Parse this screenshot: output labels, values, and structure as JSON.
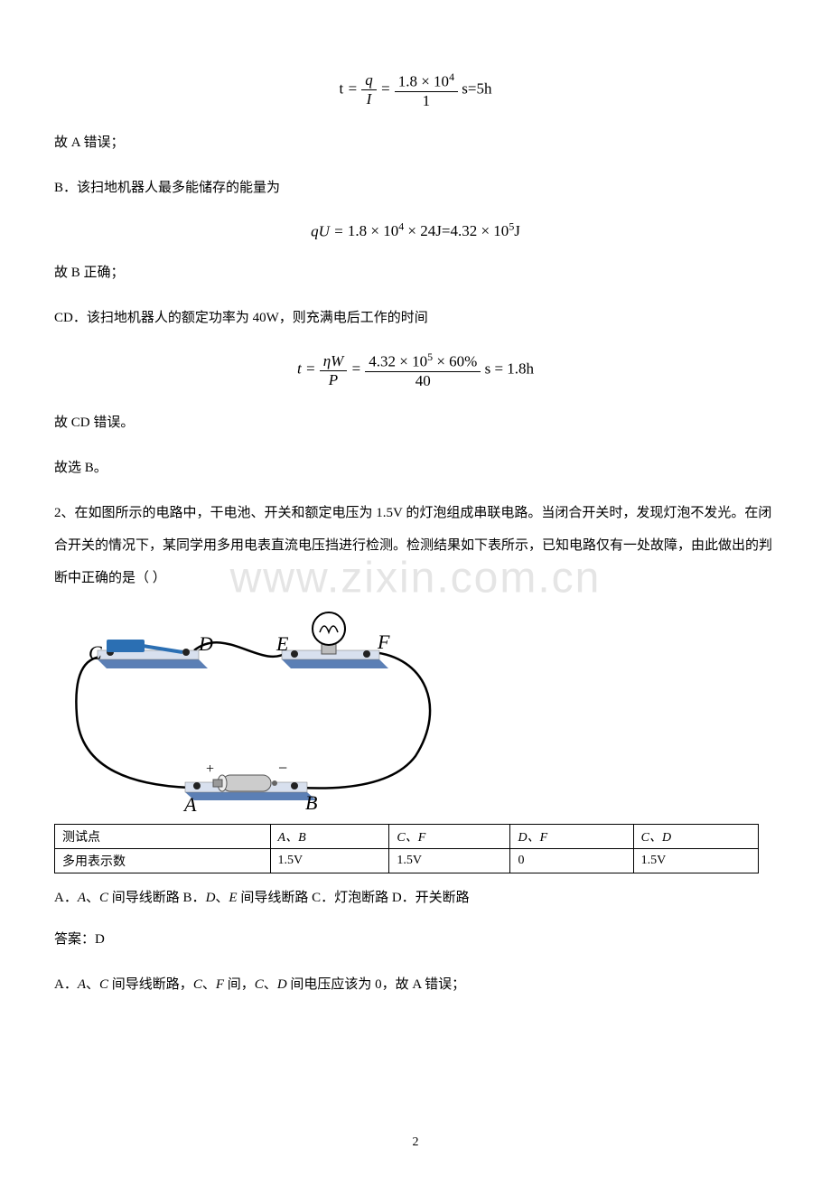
{
  "formula1_html": "<span class='upright'>t</span> = <span class='frac'><span class='num'>q</span><span class='den'>I</span></span> = <span class='frac'><span class='num upright'>1.8 × 10<span class=\"sup\">4</span></span><span class='den upright'>1</span></span> <span class='upright'>s=5h</span>",
  "para1": "故 A 错误；",
  "para2": "B．该扫地机器人最多能储存的能量为",
  "formula2_html": "<span>qU</span> = <span class='upright'>1.8 × 10<span class=\"sup\">4</span> × 24J=4.32 × 10<span class=\"sup\">5</span>J</span>",
  "para3": "故 B 正确；",
  "para4": "CD．该扫地机器人的额定功率为 40W，则充满电后工作的时间",
  "formula3_html": "<span>t</span> = <span class='frac'><span class='num'>ηW</span><span class='den'>P</span></span> = <span class='frac'><span class='num upright'>4.32 × 10<span class=\"sup\">5</span> × 60%</span><span class='den upright'>40</span></span> <span class='upright'>s = 1.8h</span>",
  "para5": "故 CD 错误。",
  "para6": "故选 B。",
  "question2": "2、在如图所示的电路中，干电池、开关和额定电压为 1.5V 的灯泡组成串联电路。当闭合开关时，发现灯泡不发光。在闭合开关的情况下，某同学用多用电表直流电压挡进行检测。检测结果如下表所示，已知电路仅有一处故障，由此做出的判断中正确的是（ ）",
  "watermark_text": "www.zixin.com.cn",
  "circuit_labels": {
    "C": "C",
    "D": "D",
    "E": "E",
    "F": "F",
    "A": "A",
    "B": "B",
    "plus": "+",
    "minus": "−"
  },
  "table": {
    "header": [
      "测试点",
      "A、B",
      "C、F",
      "D、F",
      "C、D"
    ],
    "row": [
      "多用表示数",
      "1.5V",
      "1.5V",
      "0",
      "1.5V"
    ]
  },
  "options_html": "A．<span class='italic-en'>A</span>、<span class='italic-en'>C</span> 间导线断路 B．<span class='italic-en'>D</span>、<span class='italic-en'>E</span> 间导线断路 C．灯泡断路 D．开关断路",
  "answer": "答案：D",
  "expA_html": "A．<span class='italic-en'>A</span>、<span class='italic-en'>C</span> 间导线断路，<span class='italic-en'>C</span>、<span class='italic-en'>F</span> 间，<span class='italic-en'>C</span>、<span class='italic-en'>D</span> 间电压应该为 0，故 A 错误；",
  "page_number": "2",
  "colors": {
    "board_blue": "#5b7fb5",
    "board_top": "#d8e0ee",
    "switch_blue": "#2b6fb3",
    "battery_gray": "#cccccc",
    "wire": "#000000"
  }
}
